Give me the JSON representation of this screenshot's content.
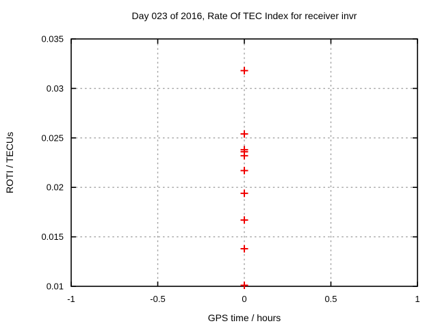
{
  "colors": {
    "background": "#ffffff",
    "border": "#000000",
    "grid": "#a0a0a0",
    "marker": "#f00000",
    "text": "#000000"
  },
  "chart_data": {
    "type": "scatter",
    "title": "Day 023 of 2016, Rate Of TEC Index for receiver invr",
    "xlabel": "GPS time / hours",
    "ylabel": "ROTI / TECUs",
    "xlim": [
      -1,
      1
    ],
    "ylim": [
      0.01,
      0.035
    ],
    "x_ticks": [
      -1,
      -0.5,
      0,
      0.5,
      1
    ],
    "y_ticks": [
      0.01,
      0.015,
      0.02,
      0.025,
      0.03,
      0.035
    ],
    "grid": true,
    "grid_style": "dashed",
    "legend": "none",
    "series": [
      {
        "name": "ROTI",
        "marker": "plus",
        "color": "#f00000",
        "points": [
          {
            "x": 0,
            "y": 0.0318
          },
          {
            "x": 0,
            "y": 0.0254
          },
          {
            "x": 0,
            "y": 0.0238
          },
          {
            "x": 0,
            "y": 0.0236
          },
          {
            "x": 0,
            "y": 0.0232
          },
          {
            "x": 0,
            "y": 0.0217
          },
          {
            "x": 0,
            "y": 0.0194
          },
          {
            "x": 0,
            "y": 0.0167
          },
          {
            "x": 0,
            "y": 0.0138
          },
          {
            "x": 0,
            "y": 0.0101
          }
        ]
      }
    ]
  }
}
